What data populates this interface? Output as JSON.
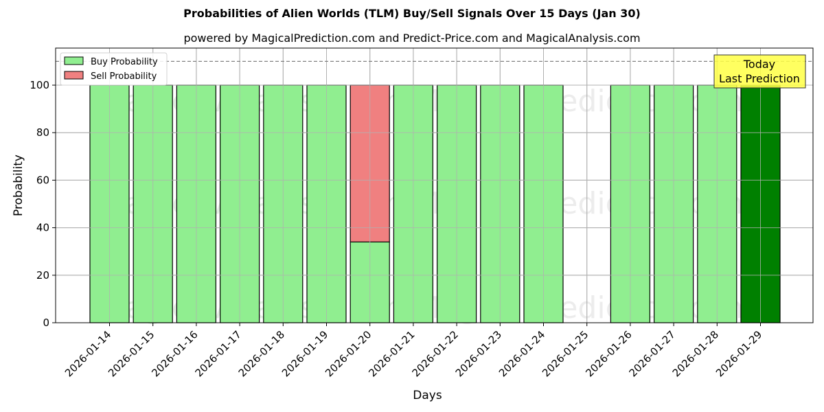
{
  "chart_data": {
    "type": "bar",
    "stacked": true,
    "title": "Probabilities of Alien Worlds (TLM) Buy/Sell Signals Over 15 Days (Jan 30)",
    "subtitle": "powered by MagicalPrediction.com and Predict-Price.com and MagicalAnalysis.com",
    "xlabel": "Days",
    "ylabel": "Probability",
    "ylim": [
      0,
      115
    ],
    "yticks": [
      0,
      20,
      40,
      60,
      80,
      100
    ],
    "reference_line": {
      "y": 110,
      "style": "dashed",
      "color": "#808080"
    },
    "grid": true,
    "legend_position": "upper left",
    "categories": [
      "2026-01-14",
      "2026-01-15",
      "2026-01-16",
      "2026-01-17",
      "2026-01-18",
      "2026-01-19",
      "2026-01-20",
      "2026-01-21",
      "2026-01-22",
      "2026-01-23",
      "2026-01-24",
      "2026-01-25",
      "2026-01-26",
      "2026-01-27",
      "2026-01-28",
      "2026-01-29"
    ],
    "series": [
      {
        "name": "Buy Probability",
        "color": "#90EE90",
        "values": [
          100,
          100,
          100,
          100,
          100,
          100,
          34,
          100,
          100,
          100,
          100,
          0,
          100,
          100,
          100,
          100
        ]
      },
      {
        "name": "Sell Probability",
        "color": "#F08080",
        "values": [
          0,
          0,
          0,
          0,
          0,
          0,
          66,
          0,
          0,
          0,
          0,
          0,
          0,
          0,
          0,
          0
        ]
      }
    ],
    "highlight": {
      "category": "2026-01-29",
      "color": "#008000",
      "annotation": [
        "Today",
        "Last Prediction"
      ],
      "annotation_bg": "#FFFF44"
    },
    "watermarks": [
      "MagicalAnalysis.com",
      "MagicalPrediction.com"
    ]
  },
  "legend": {
    "buy": "Buy Probability",
    "sell": "Sell Probability"
  },
  "annotation": {
    "line1": "Today",
    "line2": "Last Prediction"
  }
}
